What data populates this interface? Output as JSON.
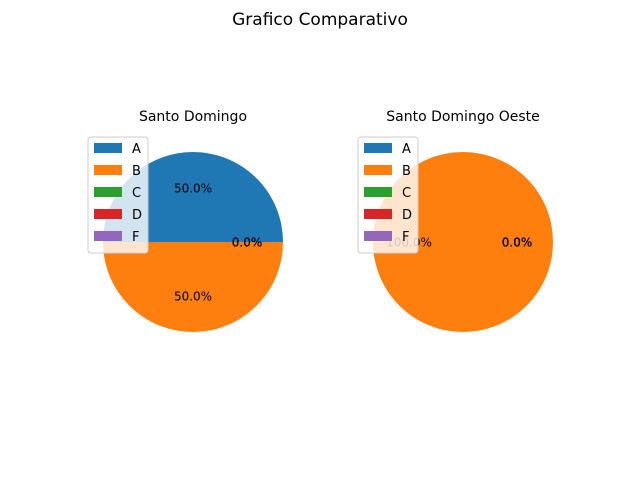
{
  "figure": {
    "title": "Grafico Comparativo"
  },
  "chart_data": [
    {
      "type": "pie",
      "title": "Santo Domingo",
      "labels": [
        "A",
        "B",
        "C",
        "D",
        "F"
      ],
      "values": [
        50,
        50,
        0,
        0,
        0
      ],
      "pct_labels": [
        "50.0%",
        "50.0%",
        "0.0%",
        "0.0%",
        "0.0%"
      ],
      "colors": [
        "#1f77b4",
        "#ff7f0e",
        "#2ca02c",
        "#d62728",
        "#9467bd"
      ],
      "legend_position": "upper-left"
    },
    {
      "type": "pie",
      "title": "Santo Domingo Oeste",
      "labels": [
        "A",
        "B",
        "C",
        "D",
        "F"
      ],
      "values": [
        0,
        100,
        0,
        0,
        0
      ],
      "pct_labels": [
        "0.0%",
        "100.0%",
        "0.0%",
        "0.0%",
        "0.0%"
      ],
      "colors": [
        "#1f77b4",
        "#ff7f0e",
        "#2ca02c",
        "#d62728",
        "#9467bd"
      ],
      "legend_position": "upper-left"
    }
  ]
}
